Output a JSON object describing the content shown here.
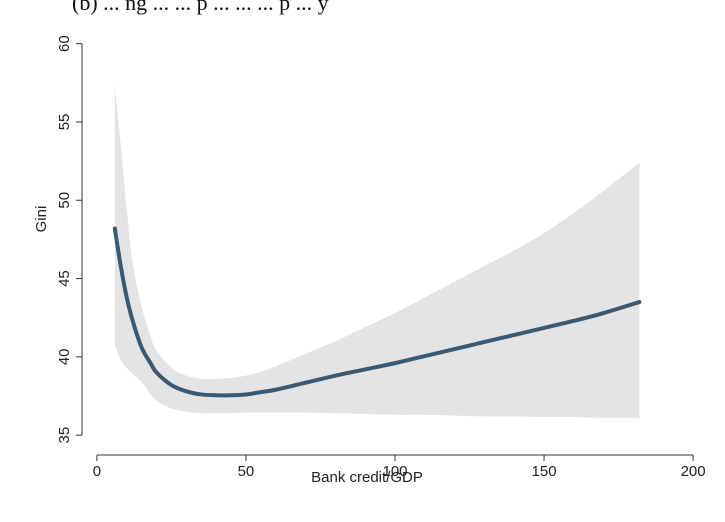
{
  "caption": "(b) ... ng ... ... p ... ... ... p ... y",
  "chart_data": {
    "type": "line",
    "title": "",
    "xlabel": "Bank credit/GDP",
    "ylabel": "Gini",
    "xlim": [
      -5,
      205
    ],
    "ylim": [
      34.5,
      61
    ],
    "xticks": [
      0,
      50,
      100,
      150,
      200
    ],
    "yticks": [
      35,
      40,
      45,
      50,
      55,
      60
    ],
    "xtick_labels": [
      "0",
      "50",
      "100",
      "150",
      "200"
    ],
    "ytick_labels": [
      "35",
      "40",
      "45",
      "50",
      "55",
      "60"
    ],
    "grid": false,
    "legend": "none",
    "colors": {
      "line": "#3a5a73",
      "band": "#e4e4e4",
      "axis": "#333333"
    },
    "series": [
      {
        "x": [
          6,
          8,
          10,
          12,
          15,
          18,
          20,
          25,
          30,
          35,
          40,
          45,
          50,
          55,
          60,
          70,
          80,
          90,
          100,
          110,
          120,
          130,
          140,
          150,
          160,
          170,
          182
        ],
        "y": [
          48.2,
          45.8,
          43.8,
          42.3,
          40.6,
          39.6,
          39.0,
          38.2,
          37.8,
          37.6,
          37.55,
          37.55,
          37.6,
          37.75,
          37.9,
          38.35,
          38.8,
          39.2,
          39.6,
          40.05,
          40.5,
          40.95,
          41.4,
          41.85,
          42.3,
          42.8,
          43.5
        ]
      }
    ],
    "confidence_band": {
      "x": [
        6,
        8,
        10,
        12,
        15,
        18,
        20,
        25,
        30,
        35,
        40,
        45,
        50,
        55,
        60,
        70,
        80,
        90,
        100,
        110,
        120,
        130,
        140,
        150,
        160,
        170,
        182
      ],
      "upper": [
        57.4,
        53.5,
        49.5,
        46.0,
        43.2,
        41.3,
        40.4,
        39.3,
        38.8,
        38.6,
        38.6,
        38.65,
        38.8,
        39.05,
        39.4,
        40.2,
        41.0,
        41.9,
        42.8,
        43.8,
        44.8,
        45.8,
        46.8,
        47.9,
        49.2,
        50.6,
        52.4
      ],
      "lower": [
        40.8,
        39.8,
        39.3,
        38.9,
        38.4,
        37.6,
        37.2,
        36.7,
        36.5,
        36.4,
        36.4,
        36.4,
        36.45,
        36.45,
        36.45,
        36.45,
        36.4,
        36.35,
        36.3,
        36.3,
        36.25,
        36.2,
        36.2,
        36.15,
        36.15,
        36.1,
        36.1
      ]
    }
  }
}
